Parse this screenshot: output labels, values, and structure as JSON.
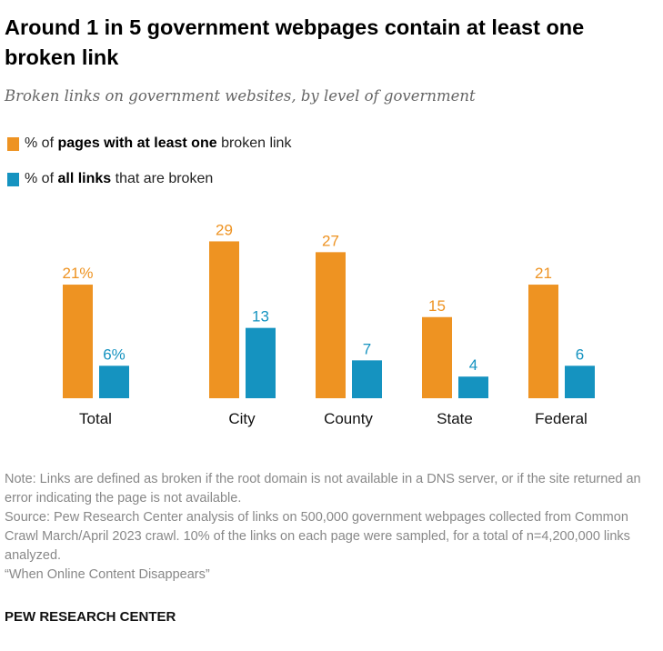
{
  "title": "Around 1 in 5 government webpages contain at least one broken link",
  "subtitle": "Broken links on government websites, by level of government",
  "legend": [
    {
      "pre": "% of ",
      "bold": "pages with at least one",
      "post": " broken link",
      "color": "#EE9322"
    },
    {
      "pre": "% of ",
      "bold": "all links",
      "post": " that are broken",
      "color": "#1593C0"
    }
  ],
  "chart_data": {
    "type": "bar",
    "categories": [
      "Total",
      "City",
      "County",
      "State",
      "Federal"
    ],
    "series": [
      {
        "name": "% of pages with at least one broken link",
        "values": [
          21,
          29,
          27,
          15,
          21
        ],
        "labels": [
          "21%",
          "29",
          "27",
          "15",
          "21"
        ],
        "color": "#EE9322"
      },
      {
        "name": "% of all links that are broken",
        "values": [
          6,
          13,
          7,
          4,
          6
        ],
        "labels": [
          "6%",
          "13",
          "7",
          "4",
          "6"
        ],
        "color": "#1593C0"
      }
    ],
    "ylim": [
      0,
      29
    ],
    "grid": false
  },
  "notes": [
    "Note: Links are defined as broken if the root domain is not available in a DNS server, or if the site returned an error indicating the page is not available.",
    "Source: Pew Research Center analysis of links on 500,000 government webpages collected from Common Crawl March/April 2023 crawl. 10% of the links on each page were sampled, for a total of n=4,200,000 links analyzed.",
    "“When Online Content Disappears”"
  ],
  "brand": "PEW RESEARCH CENTER"
}
